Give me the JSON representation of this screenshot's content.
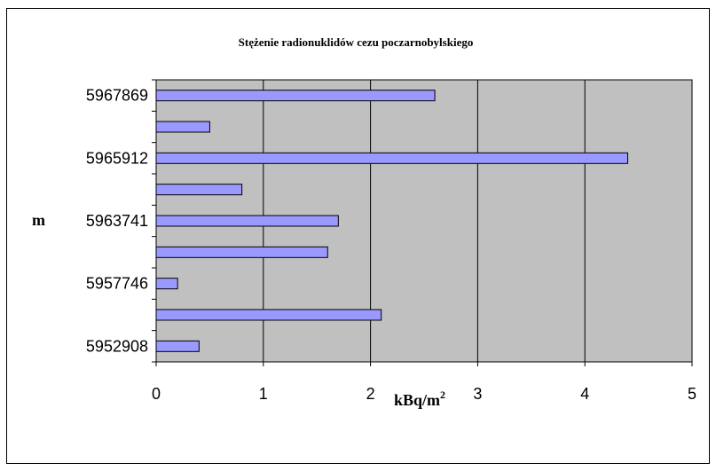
{
  "chart_data": {
    "type": "bar",
    "orientation": "horizontal",
    "title": "Stężenie radionuklidów cezu poczarnobylskiego",
    "xlabel": "kBq/m",
    "xlabel_superscript": "2",
    "ylabel": "m",
    "xlim": [
      0,
      5
    ],
    "x_ticks": [
      "0",
      "1",
      "2",
      "3",
      "4",
      "5"
    ],
    "categories": [
      "5967869",
      "",
      "5965912",
      "",
      "5963741",
      "",
      "5957746",
      "",
      "5952908"
    ],
    "values": [
      2.6,
      0.5,
      4.4,
      0.8,
      1.7,
      1.6,
      0.2,
      2.1,
      0.4
    ],
    "grid": true,
    "legend": "none"
  },
  "colors": {
    "bar_fill": "#9999FF",
    "bar_stroke": "#000000",
    "plot_bg": "#C0C0C0",
    "grid": "#000000"
  }
}
